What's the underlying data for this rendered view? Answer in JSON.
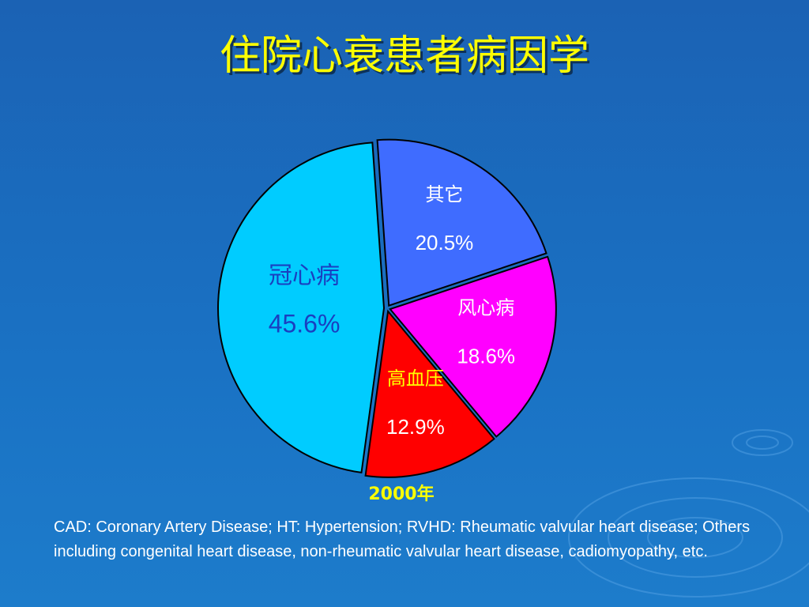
{
  "chart_data": {
    "type": "pie",
    "title": "住院心衰患者病因学",
    "categories": [
      "其它",
      "风心病",
      "高血压",
      "冠心病"
    ],
    "values": [
      20.5,
      18.6,
      12.9,
      45.6
    ],
    "value_labels": [
      "20.5%",
      "18.6%",
      "12.9%",
      "45.6%"
    ],
    "colors": [
      "#3f6cff",
      "#ff00ff",
      "#ff0000",
      "#00ccff"
    ],
    "label_colors": [
      "#ffffff",
      "#ffffff",
      "#ffff00",
      "#1a3fc0"
    ],
    "value_label_colors": [
      "#ffffff",
      "#ffffff",
      "#ffffff",
      "#1a3fc0"
    ],
    "caption": "2000年"
  },
  "footnote": "CAD: Coronary Artery Disease; HT: Hypertension; RVHD: Rheumatic valvular heart disease; Others including congenital heart disease, non-rheumatic valvular heart disease, cadiomyopathy, etc."
}
